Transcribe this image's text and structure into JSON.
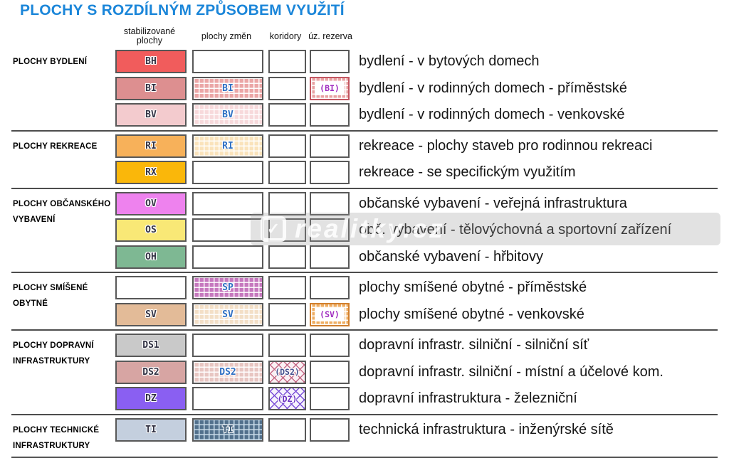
{
  "title": "PLOCHY S ROZDÍLNÝM ZPŮSOBEM VYUŽITÍ",
  "columns": {
    "stabilized": "stabilizované plochy",
    "changes": "plochy změn",
    "corridors": "koridory",
    "reserve": "úz. rezerva"
  },
  "watermark": {
    "logo_glyph": "✓",
    "text": "realitky.cz"
  },
  "colors": {
    "title_blue": "#1b86d9",
    "divider_gray": "#4d4d4d",
    "swatch_border_gray": "#585858",
    "change_label_blue": "#2e6fc3",
    "reserve_label_purple": "#a02cc0"
  },
  "groups": [
    {
      "label": [
        "PLOCHY BYDLENÍ"
      ],
      "rows": [
        {
          "code": "BH",
          "desc": "bydlení - v bytových domech",
          "stab": {
            "t": "solid",
            "c": "#f15c5c",
            "label": "BH",
            "lc": "#333344"
          },
          "zmeny": {
            "t": "empty"
          },
          "koridor": {
            "t": "empty"
          },
          "rezerva": {
            "t": "empty"
          }
        },
        {
          "code": "BI",
          "desc": "bydlení - v rodinných domech - příměstské",
          "stab": {
            "t": "solid",
            "c": "#dd8f90",
            "label": "BI",
            "lc": "#333344"
          },
          "zmeny": {
            "t": "grid",
            "c": "#eba6a6",
            "g": "rgba(255,255,255,.95)",
            "label": "BI",
            "lc": "#2e6fc3"
          },
          "koridor": {
            "t": "empty"
          },
          "rezerva": {
            "t": "frame",
            "c": "#e8a2a2",
            "g": "rgba(255,255,255,.95)",
            "bc": "#c25560",
            "label": "(BI)",
            "lc": "#a02cc0",
            "small": true
          }
        },
        {
          "code": "BV",
          "desc": "bydlení - v rodinných domech - venkovské",
          "stab": {
            "t": "solid",
            "c": "#f3cbce",
            "label": "BV",
            "lc": "#333344"
          },
          "zmeny": {
            "t": "grid",
            "c": "#f7d9db",
            "g": "rgba(255,255,255,.95)",
            "label": "BV",
            "lc": "#2e6fc3"
          },
          "koridor": {
            "t": "empty"
          },
          "rezerva": {
            "t": "empty"
          }
        }
      ]
    },
    {
      "label": [
        "PLOCHY REKREACE"
      ],
      "rows": [
        {
          "code": "RI",
          "desc": "rekreace - plochy staveb pro rodinnou rekreaci",
          "stab": {
            "t": "solid",
            "c": "#f7b15a",
            "label": "RI",
            "lc": "#333344"
          },
          "zmeny": {
            "t": "grid",
            "c": "#fae3bb",
            "g": "rgba(255,255,255,.95)",
            "label": "RI",
            "lc": "#2e6fc3"
          },
          "koridor": {
            "t": "empty"
          },
          "rezerva": {
            "t": "empty"
          }
        },
        {
          "code": "RX",
          "desc": "rekreace - se specifickým využitím",
          "stab": {
            "t": "solid",
            "c": "#fab70a",
            "label": "RX",
            "lc": "#333344"
          },
          "zmeny": {
            "t": "empty"
          },
          "koridor": {
            "t": "empty"
          },
          "rezerva": {
            "t": "empty"
          }
        }
      ]
    },
    {
      "label": [
        "PLOCHY OBČANSKÉHO",
        "VYBAVENÍ"
      ],
      "rows": [
        {
          "code": "OV",
          "desc": "občanské vybavení - veřejná infrastruktura",
          "stab": {
            "t": "solid",
            "c": "#ee82ee",
            "label": "OV",
            "lc": "#333344"
          },
          "zmeny": {
            "t": "empty"
          },
          "koridor": {
            "t": "empty"
          },
          "rezerva": {
            "t": "empty"
          }
        },
        {
          "code": "OS",
          "desc": "obč. vybavení - tělovýchovná a sportovní zařízení",
          "stab": {
            "t": "solid",
            "c": "#f9e876",
            "label": "OS",
            "lc": "#333344"
          },
          "zmeny": {
            "t": "empty"
          },
          "koridor": {
            "t": "empty"
          },
          "rezerva": {
            "t": "empty"
          }
        },
        {
          "code": "OH",
          "desc": "občanské vybavení - hřbitovy",
          "stab": {
            "t": "solid",
            "c": "#7eb893",
            "label": "OH",
            "lc": "#333344"
          },
          "zmeny": {
            "t": "empty"
          },
          "koridor": {
            "t": "empty"
          },
          "rezerva": {
            "t": "empty"
          }
        }
      ]
    },
    {
      "label": [
        "PLOCHY SMÍŠENÉ",
        "OBYTNÉ"
      ],
      "rows": [
        {
          "code": "SP",
          "desc": "plochy smíšené obytné - příměstské",
          "stab": {
            "t": "empty"
          },
          "zmeny": {
            "t": "grid",
            "c": "#c678be",
            "g": "rgba(255,255,255,.9)",
            "label": "SP",
            "lc": "#2e6fc3"
          },
          "koridor": {
            "t": "empty"
          },
          "rezerva": {
            "t": "empty"
          }
        },
        {
          "code": "SV",
          "desc": "plochy smíšené obytné - venkovské",
          "stab": {
            "t": "solid",
            "c": "#e3bb98",
            "label": "SV",
            "lc": "#333344"
          },
          "zmeny": {
            "t": "grid",
            "c": "#f3dfc7",
            "g": "rgba(255,255,255,.95)",
            "label": "SV",
            "lc": "#2e6fc3"
          },
          "koridor": {
            "t": "empty"
          },
          "rezerva": {
            "t": "frame",
            "c": "#efae63",
            "g": "rgba(255,255,255,.95)",
            "bc": "#d07f2e",
            "label": "(SV)",
            "lc": "#a02cc0",
            "small": true
          }
        }
      ]
    },
    {
      "label": [
        "PLOCHY DOPRAVNÍ",
        "INFRASTRUKTURY"
      ],
      "rows": [
        {
          "code": "DS1",
          "desc": "dopravní infrastr. silniční - silniční síť",
          "stab": {
            "t": "solid",
            "c": "#c9c9c9",
            "label": "DS1",
            "lc": "#333344"
          },
          "zmeny": {
            "t": "empty"
          },
          "koridor": {
            "t": "empty"
          },
          "rezerva": {
            "t": "empty"
          }
        },
        {
          "code": "DS2",
          "desc": "dopravní infrastr. silniční - místní a účelové kom.",
          "stab": {
            "t": "solid",
            "c": "#d7a5a3",
            "label": "DS2",
            "lc": "#333344"
          },
          "zmeny": {
            "t": "grid",
            "c": "#e8c6c2",
            "g": "rgba(255,255,255,.95)",
            "label": "DS2",
            "lc": "#2e6fc3"
          },
          "koridor": {
            "t": "cross",
            "bg": "#faf0f4",
            "c": "#c56a86",
            "label": "(DS2)",
            "lc": "#44508e",
            "small": true
          },
          "rezerva": {
            "t": "empty"
          }
        },
        {
          "code": "DZ",
          "desc": "dopravní infrastruktura - železniční",
          "stab": {
            "t": "solid",
            "c": "#8a5ff2",
            "label": "DZ",
            "lc": "#333344"
          },
          "zmeny": {
            "t": "empty"
          },
          "koridor": {
            "t": "cross",
            "bg": "#f6f2fc",
            "c": "#7a4fd8",
            "label": "(DZ)",
            "lc": "#6930c0",
            "small": true
          },
          "rezerva": {
            "t": "empty"
          }
        }
      ]
    },
    {
      "label": [
        "PLOCHY TECHNICKÉ",
        "INFRASTRUKTURY"
      ],
      "rows": [
        {
          "code": "TI",
          "desc": "technická infrastruktura - inženýrské sítě",
          "stab": {
            "t": "solid",
            "c": "#c4cfde",
            "label": "TI",
            "lc": "#333344"
          },
          "zmeny": {
            "t": "grid",
            "c": "#51708c",
            "g": "#c9dcea",
            "label": "TI",
            "lc": "#3c5a77"
          },
          "koridor": {
            "t": "empty"
          },
          "rezerva": {
            "t": "empty"
          }
        }
      ]
    }
  ]
}
